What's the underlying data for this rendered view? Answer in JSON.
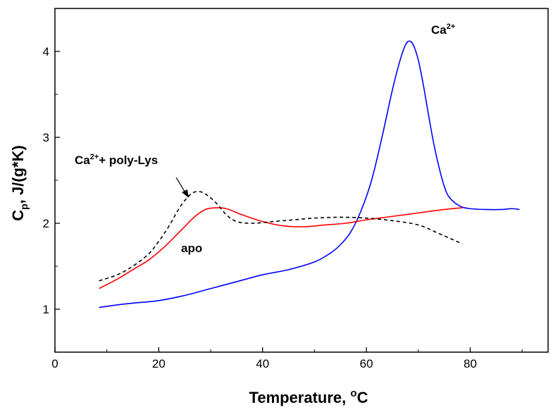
{
  "chart_data": {
    "type": "line",
    "xlabel": {
      "main": "Temperature, ",
      "sup": "o",
      "tail": "C"
    },
    "ylabel": {
      "main": "C",
      "sub": "p",
      "tail": ", J/(g*K)"
    },
    "xlim": [
      0,
      95
    ],
    "ylim": [
      0.5,
      4.5
    ],
    "xticks": [
      0,
      20,
      40,
      60,
      80
    ],
    "yticks": [
      1,
      2,
      3,
      4
    ],
    "grid": false,
    "series": [
      {
        "name": "Ca2+",
        "color": "#0000ff",
        "dash": "none",
        "points": [
          [
            8.5,
            1.02
          ],
          [
            12,
            1.05
          ],
          [
            15,
            1.07
          ],
          [
            20,
            1.1
          ],
          [
            25,
            1.16
          ],
          [
            30,
            1.24
          ],
          [
            35,
            1.32
          ],
          [
            40,
            1.4
          ],
          [
            45,
            1.46
          ],
          [
            50,
            1.55
          ],
          [
            53,
            1.65
          ],
          [
            55,
            1.75
          ],
          [
            57,
            1.9
          ],
          [
            59,
            2.15
          ],
          [
            61,
            2.5
          ],
          [
            63,
            3.0
          ],
          [
            65,
            3.55
          ],
          [
            66.5,
            3.9
          ],
          [
            67.5,
            4.07
          ],
          [
            68.2,
            4.12
          ],
          [
            69,
            4.08
          ],
          [
            70,
            3.9
          ],
          [
            71,
            3.6
          ],
          [
            72,
            3.25
          ],
          [
            73,
            2.92
          ],
          [
            74,
            2.65
          ],
          [
            75,
            2.43
          ],
          [
            76,
            2.3
          ],
          [
            78,
            2.2
          ],
          [
            80,
            2.17
          ],
          [
            83,
            2.16
          ],
          [
            86,
            2.16
          ],
          [
            88,
            2.17
          ],
          [
            89.5,
            2.16
          ]
        ]
      },
      {
        "name": "apo",
        "color": "#ff0000",
        "dash": "none",
        "points": [
          [
            8.5,
            1.24
          ],
          [
            12,
            1.35
          ],
          [
            15,
            1.46
          ],
          [
            18,
            1.57
          ],
          [
            21,
            1.72
          ],
          [
            24,
            1.9
          ],
          [
            27,
            2.08
          ],
          [
            29,
            2.16
          ],
          [
            31,
            2.18
          ],
          [
            33,
            2.17
          ],
          [
            36,
            2.1
          ],
          [
            40,
            2.02
          ],
          [
            44,
            1.97
          ],
          [
            48,
            1.96
          ],
          [
            52,
            1.98
          ],
          [
            56,
            2.0
          ],
          [
            60,
            2.04
          ],
          [
            65,
            2.08
          ],
          [
            70,
            2.12
          ],
          [
            75,
            2.16
          ],
          [
            78.5,
            2.18
          ]
        ]
      },
      {
        "name": "Ca2+ + poly-Lys",
        "color": "#000000",
        "dash": "5,4",
        "points": [
          [
            8.5,
            1.33
          ],
          [
            12,
            1.4
          ],
          [
            15,
            1.5
          ],
          [
            18,
            1.64
          ],
          [
            20,
            1.79
          ],
          [
            22,
            1.97
          ],
          [
            24,
            2.18
          ],
          [
            26,
            2.33
          ],
          [
            27.5,
            2.37
          ],
          [
            29,
            2.34
          ],
          [
            31,
            2.24
          ],
          [
            33,
            2.1
          ],
          [
            35,
            2.02
          ],
          [
            38,
            2.0
          ],
          [
            42,
            2.02
          ],
          [
            46,
            2.04
          ],
          [
            50,
            2.06
          ],
          [
            55,
            2.07
          ],
          [
            60,
            2.06
          ],
          [
            65,
            2.03
          ],
          [
            70,
            1.98
          ],
          [
            74,
            1.88
          ],
          [
            78.5,
            1.76
          ]
        ]
      }
    ],
    "annotations": [
      {
        "text": "Ca",
        "sup": "2+",
        "rest": ""
      },
      {
        "text": "apo",
        "sup": "",
        "rest": ""
      },
      {
        "text": "Ca",
        "sup": "2+",
        "rest": "+ poly-Lys"
      }
    ]
  }
}
